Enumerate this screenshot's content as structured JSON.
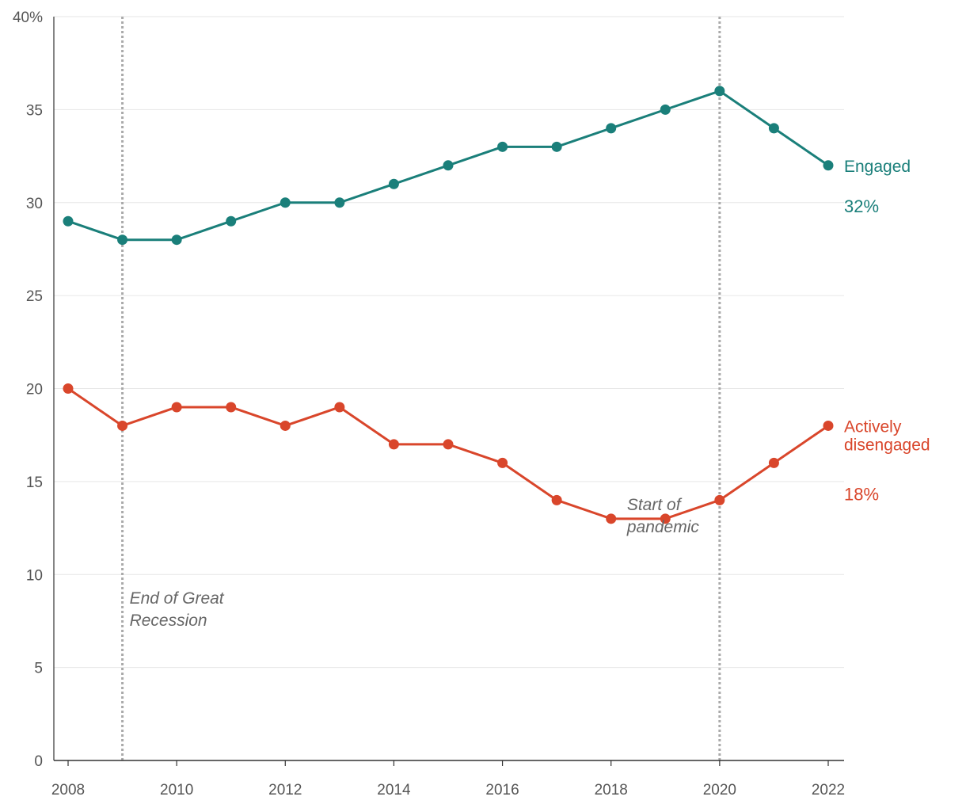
{
  "chart_data": {
    "type": "line",
    "x": [
      2008,
      2009,
      2010,
      2011,
      2012,
      2013,
      2014,
      2015,
      2016,
      2017,
      2018,
      2019,
      2020,
      2021,
      2022
    ],
    "series": [
      {
        "name": "Engaged",
        "label_lines": [
          "Engaged"
        ],
        "end_value_label": "32%",
        "color": "#1a7f7a",
        "values": [
          29,
          28,
          28,
          29,
          30,
          30,
          31,
          32,
          33,
          33,
          34,
          35,
          36,
          34,
          32
        ]
      },
      {
        "name": "Actively disengaged",
        "label_lines": [
          "Actively",
          "disengaged"
        ],
        "end_value_label": "18%",
        "color": "#d9462b",
        "values": [
          20,
          18,
          19,
          19,
          18,
          19,
          17,
          17,
          16,
          14,
          13,
          13,
          14,
          16,
          18
        ]
      }
    ],
    "ylim": [
      0,
      40
    ],
    "y_ticks": [
      0,
      5,
      10,
      15,
      20,
      25,
      30,
      35,
      40
    ],
    "y_tick_labels": [
      "0",
      "5",
      "10",
      "15",
      "20",
      "25",
      "30",
      "35",
      "40%"
    ],
    "x_ticks": [
      2008,
      2010,
      2012,
      2014,
      2016,
      2018,
      2020,
      2022
    ],
    "x_tick_labels": [
      "2008",
      "2010",
      "2012",
      "2014",
      "2016",
      "2018",
      "2020",
      "2022"
    ],
    "grid": true,
    "annotations": [
      {
        "x": 2009,
        "lines": [
          "End of Great",
          "Recession"
        ]
      },
      {
        "x": 2020,
        "lines": [
          "Start of",
          "pandemic"
        ]
      }
    ],
    "colors": {
      "grid": "#e6e6e6",
      "axis": "#333333",
      "vline": "#aaaaaa",
      "tick_text": "#555555",
      "annotation_text": "#666666"
    }
  }
}
